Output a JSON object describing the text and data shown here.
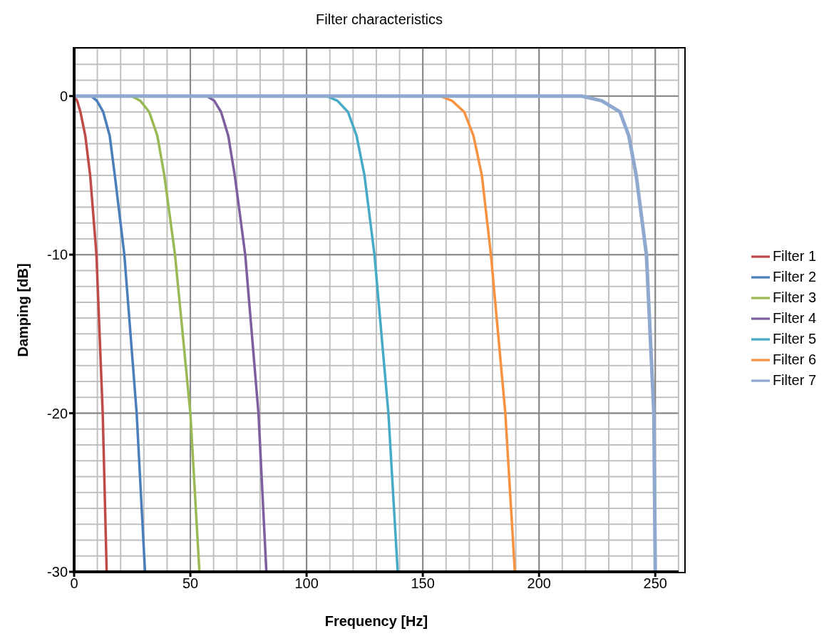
{
  "chart_data": {
    "type": "line",
    "title": "Filter characteristics",
    "xlabel": "Frequency [Hz]",
    "ylabel": "Damping [dB]",
    "xlim": [
      0,
      260
    ],
    "ylim": [
      -30,
      3
    ],
    "xticks": [
      0,
      50,
      100,
      150,
      200,
      250
    ],
    "yticks": [
      0,
      -10,
      -20,
      -30
    ],
    "grid": true,
    "legend": "right",
    "marker": "none",
    "line_style": "solid",
    "series": [
      {
        "name": "Filter 1",
        "color": "#be4b48",
        "x": [
          0,
          1.3,
          2.7,
          4.8,
          6.9,
          9.6,
          12.3,
          14
        ],
        "values": [
          0,
          -0.3,
          -1,
          -2.5,
          -5,
          -10,
          -20,
          -30
        ]
      },
      {
        "name": "Filter 2",
        "color": "#4a7ebb",
        "x": [
          0,
          7.3,
          9.8,
          12.5,
          15.3,
          17.5,
          21.6,
          26.9,
          30.5
        ],
        "values": [
          0,
          0,
          -0.3,
          -1,
          -2.5,
          -5,
          -10,
          -20,
          -30
        ]
      },
      {
        "name": "Filter 3",
        "color": "#98b954",
        "x": [
          0,
          24.7,
          28.5,
          32.3,
          35.8,
          38.8,
          43.4,
          50,
          53.9
        ],
        "values": [
          0,
          0,
          -0.3,
          -1,
          -2.5,
          -5,
          -10,
          -20,
          -30
        ]
      },
      {
        "name": "Filter 4",
        "color": "#7d5fa0",
        "x": [
          0,
          57.1,
          60.3,
          63.2,
          66.3,
          69.1,
          73.6,
          79.3,
          82.7
        ],
        "values": [
          0,
          0,
          -0.3,
          -1,
          -2.5,
          -5,
          -10,
          -20,
          -30
        ]
      },
      {
        "name": "Filter 5",
        "color": "#46aac5",
        "x": [
          0,
          108.6,
          113.3,
          117.8,
          121.5,
          124.9,
          129.2,
          135.2,
          139.2
        ],
        "values": [
          0,
          0,
          -0.3,
          -1,
          -2.5,
          -5,
          -10,
          -20,
          -30
        ]
      },
      {
        "name": "Filter 6",
        "color": "#f69240",
        "x": [
          0,
          157.5,
          162.6,
          167.8,
          171.8,
          175.4,
          179.3,
          185.5,
          189.6
        ],
        "values": [
          0,
          0,
          -0.3,
          -1,
          -2.5,
          -5,
          -10,
          -20,
          -30
        ]
      },
      {
        "name": "Filter 7",
        "color": "#8fa8d0",
        "x": [
          0,
          218.4,
          227,
          234.8,
          238.6,
          241.8,
          246.2,
          249.4,
          250
        ],
        "values": [
          0,
          0,
          -0.3,
          -1,
          -2.5,
          -5,
          -10,
          -20,
          -30
        ]
      }
    ]
  }
}
